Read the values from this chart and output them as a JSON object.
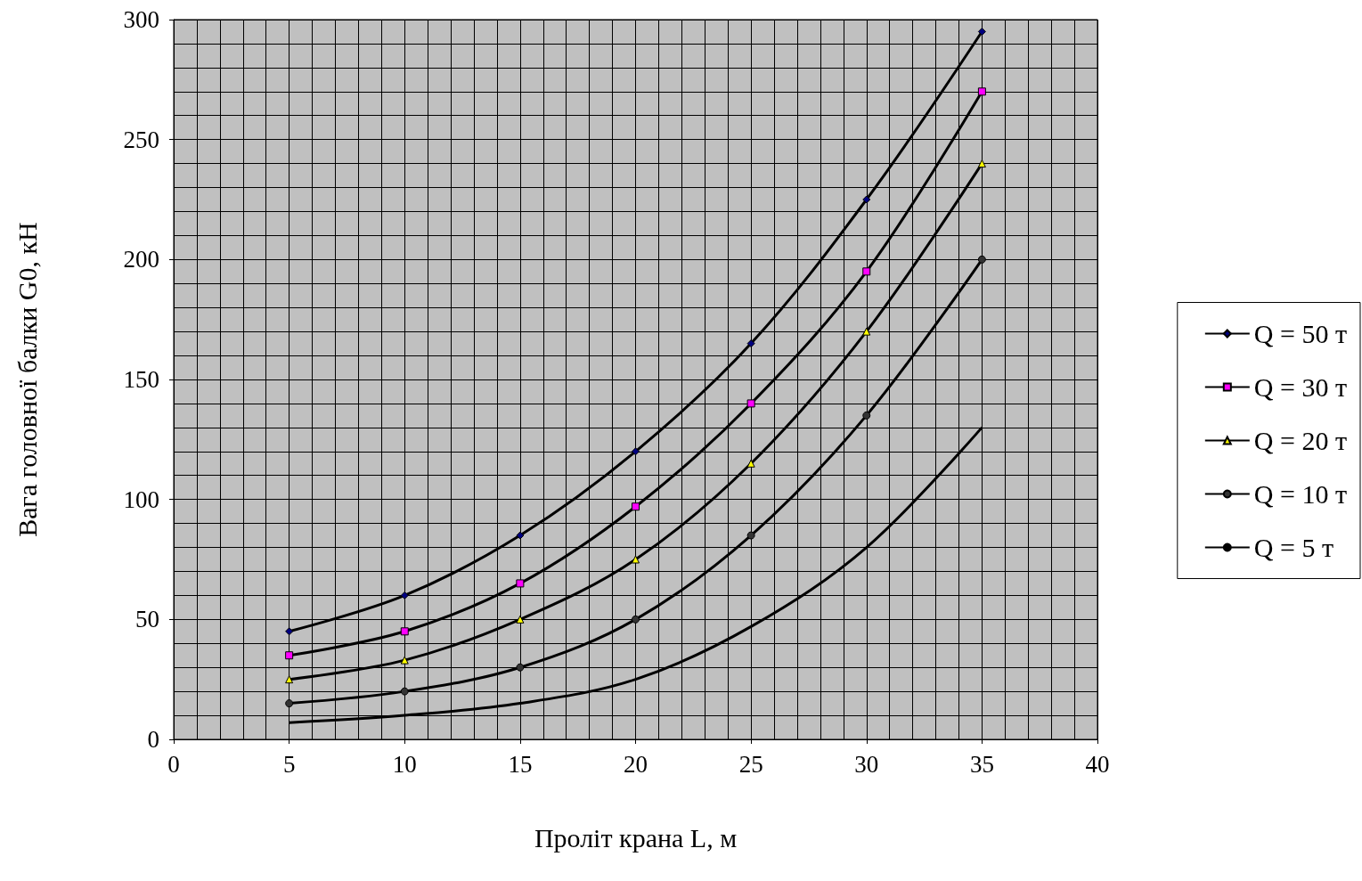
{
  "chart_data": {
    "type": "line",
    "xlabel": "Проліт крана L, м",
    "ylabel": "Вага головної балки G0, кН",
    "x": [
      5,
      10,
      15,
      20,
      25,
      30,
      35
    ],
    "series": [
      {
        "name": "Q = 50 т",
        "color": "#000080",
        "marker": "diamond",
        "values": [
          45,
          60,
          85,
          120,
          165,
          225,
          295
        ]
      },
      {
        "name": "Q = 30 т",
        "color": "#ff00ff",
        "marker": "square",
        "values": [
          35,
          45,
          65,
          97,
          140,
          195,
          270
        ]
      },
      {
        "name": "Q = 20 т",
        "color": "#ffff00",
        "marker": "triangle",
        "values": [
          25,
          33,
          50,
          75,
          115,
          170,
          240
        ]
      },
      {
        "name": "Q = 10 т",
        "color": "#333333",
        "marker": "circle",
        "values": [
          15,
          20,
          30,
          50,
          85,
          135,
          200
        ]
      },
      {
        "name": "Q = 5 т",
        "color": "#000000",
        "marker": "none",
        "values": [
          7,
          10,
          15,
          25,
          47,
          80,
          130
        ]
      }
    ],
    "xlim": [
      0,
      40
    ],
    "xticks": [
      0,
      5,
      10,
      15,
      20,
      25,
      30,
      35,
      40
    ],
    "ylim": [
      0,
      300
    ],
    "yticks": [
      0,
      50,
      100,
      150,
      200,
      250,
      300
    ],
    "grid": true,
    "legend": "right",
    "line_style": "solid"
  }
}
